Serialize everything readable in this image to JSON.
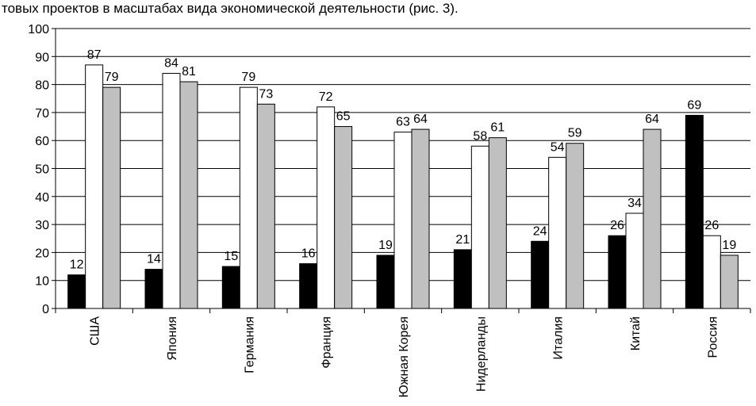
{
  "caption": "товых проектов в масштабах вида экономической деятельности (рис. 3).",
  "chart_data": {
    "type": "bar",
    "categories": [
      "США",
      "Япония",
      "Германия",
      "Франция",
      "Южная Корея",
      "Нидерланды",
      "Италия",
      "Китай",
      "Россия"
    ],
    "series": [
      {
        "values": [
          12,
          14,
          15,
          16,
          19,
          21,
          24,
          26,
          69
        ],
        "color": "#000000"
      },
      {
        "values": [
          87,
          84,
          79,
          72,
          63,
          58,
          54,
          34,
          26
        ],
        "color": "#ffffff"
      },
      {
        "values": [
          79,
          81,
          73,
          65,
          64,
          61,
          59,
          64,
          19
        ],
        "color": "#c0c0c0"
      }
    ],
    "yticks": [
      0,
      10,
      20,
      30,
      40,
      50,
      60,
      70,
      80,
      90,
      100
    ],
    "ylim": [
      0,
      100
    ],
    "grid": true,
    "legend": "none",
    "xlabel": "",
    "ylabel": "",
    "title": ""
  }
}
